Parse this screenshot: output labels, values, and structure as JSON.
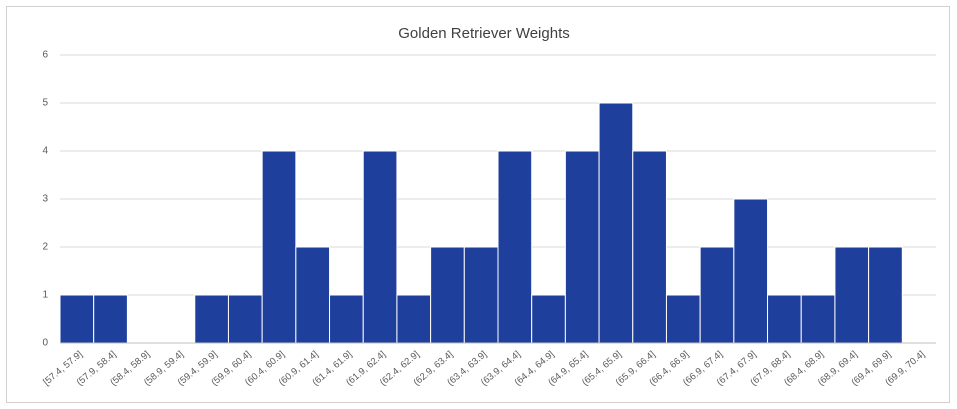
{
  "chart_data": {
    "type": "bar",
    "title": "Golden Retriever Weights",
    "categories": [
      "[57.4, 57.9]",
      "(57.9, 58.4]",
      "(58.4, 58.9]",
      "(58.9, 59.4]",
      "(59.4, 59.9]",
      "(59.9, 60.4]",
      "(60.4, 60.9]",
      "(60.9, 61.4]",
      "(61.4, 61.9]",
      "(61.9, 62.4]",
      "(62.4, 62.9]",
      "(62.9, 63.4]",
      "(63.4, 63.9]",
      "(63.9, 64.4]",
      "(64.4, 64.9]",
      "(64.9, 65.4]",
      "(65.4, 65.9]",
      "(65.9, 66.4]",
      "(66.4, 66.9]",
      "(66.9, 67.4]",
      "(67.4, 67.9]",
      "(67.9, 68.4]",
      "(68.4, 68.9]",
      "(68.9, 69.4]",
      "(69.4, 69.9]",
      "(69.9, 70.4]"
    ],
    "values": [
      1,
      1,
      0,
      0,
      1,
      1,
      4,
      2,
      1,
      4,
      1,
      2,
      2,
      4,
      1,
      4,
      5,
      4,
      1,
      2,
      3,
      1,
      1,
      2,
      2,
      0
    ],
    "color": "#1f3f9c",
    "ylim": [
      0,
      6
    ],
    "yticks": [
      0,
      1,
      2,
      3,
      4,
      5,
      6
    ],
    "grid": true
  }
}
